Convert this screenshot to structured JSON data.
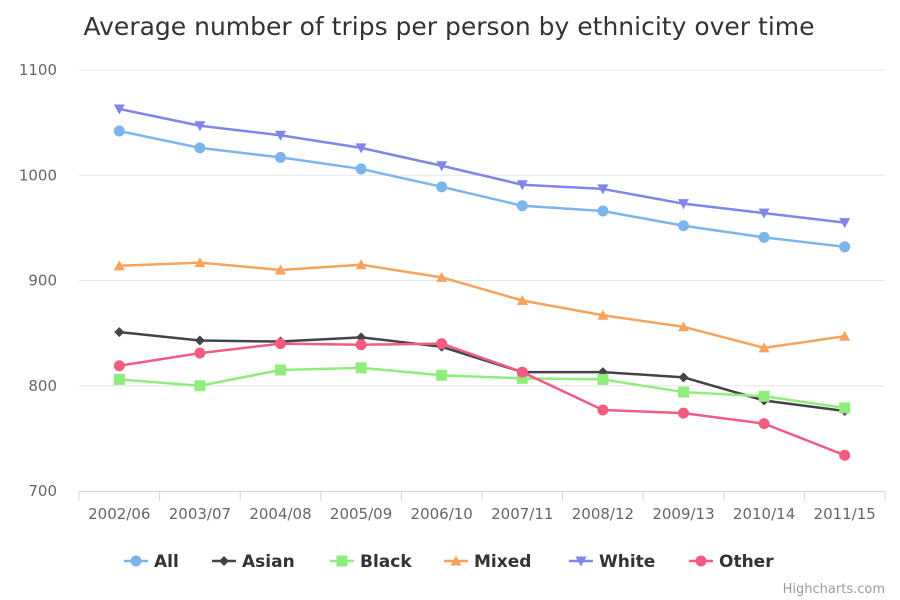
{
  "chart_data": {
    "type": "line",
    "title": "Average number of trips per person by ethnicity over time",
    "categories": [
      "2002/06",
      "2003/07",
      "2004/08",
      "2005/09",
      "2006/10",
      "2007/11",
      "2008/12",
      "2009/13",
      "2010/14",
      "2011/15"
    ],
    "yticks": [
      "700",
      "800",
      "900",
      "1000",
      "1100"
    ],
    "ylim": [
      700,
      1100
    ],
    "grid": true,
    "legend_position": "bottom",
    "series": [
      {
        "name": "All",
        "color": "#7cb5ec",
        "marker": "circle",
        "values": [
          1042,
          1026,
          1017,
          1006,
          989,
          971,
          966,
          952,
          941,
          932
        ]
      },
      {
        "name": "Asian",
        "color": "#434348",
        "marker": "diamond",
        "values": [
          851,
          843,
          842,
          846,
          837,
          813,
          813,
          808,
          786,
          776
        ]
      },
      {
        "name": "Black",
        "color": "#90ed7d",
        "marker": "square",
        "values": [
          806,
          800,
          815,
          817,
          810,
          807,
          806,
          794,
          790,
          779
        ]
      },
      {
        "name": "Mixed",
        "color": "#f7a35c",
        "marker": "triangle",
        "values": [
          914,
          917,
          910,
          915,
          903,
          881,
          867,
          856,
          836,
          847
        ]
      },
      {
        "name": "White",
        "color": "#8085e9",
        "marker": "triangle-down",
        "values": [
          1063,
          1047,
          1038,
          1026,
          1009,
          991,
          987,
          973,
          964,
          955
        ]
      },
      {
        "name": "Other",
        "color": "#f15c80",
        "marker": "circle",
        "values": [
          819,
          831,
          840,
          839,
          840,
          813,
          777,
          774,
          764,
          734
        ]
      }
    ],
    "credits": "Highcharts.com"
  }
}
